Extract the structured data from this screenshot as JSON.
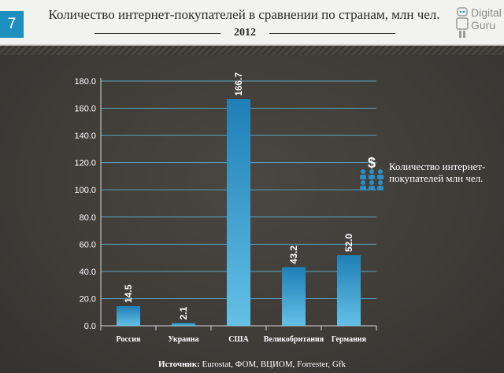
{
  "header": {
    "slide_number": "7",
    "title": "Количество интернет-покупателей в сравнении по странам, млн чел.",
    "subtitle": "2012"
  },
  "logo": {
    "line1": "Digital",
    "line2": "Guru"
  },
  "legend": {
    "label": "Количество интернет-покупателей млн чел.",
    "icon": "money-people-icon"
  },
  "source": {
    "label": "Источник:",
    "text": "Eurostat, ФОМ, ВЦИОМ, Forrester, Gfk"
  },
  "colors": {
    "bar_top": "#1f7fb6",
    "bar_bottom": "#64c0e6",
    "grid": "#5eb7d6",
    "accent": "#1f8fc0"
  },
  "chart_data": {
    "type": "bar",
    "categories": [
      "Россия",
      "Украина",
      "США",
      "Великобритания",
      "Германия"
    ],
    "values": [
      14.5,
      2.1,
      166.7,
      43.2,
      52.0
    ],
    "value_labels": [
      "14.5",
      "2.1",
      "166.7",
      "43.2",
      "52.0"
    ],
    "y_ticks": [
      "0.0",
      "20.0",
      "40.0",
      "60.0",
      "80.0",
      "100.0",
      "120.0",
      "140.0",
      "160.0",
      "180.0"
    ],
    "ylim": [
      0,
      180
    ],
    "grid": true,
    "legend_position": "right"
  }
}
